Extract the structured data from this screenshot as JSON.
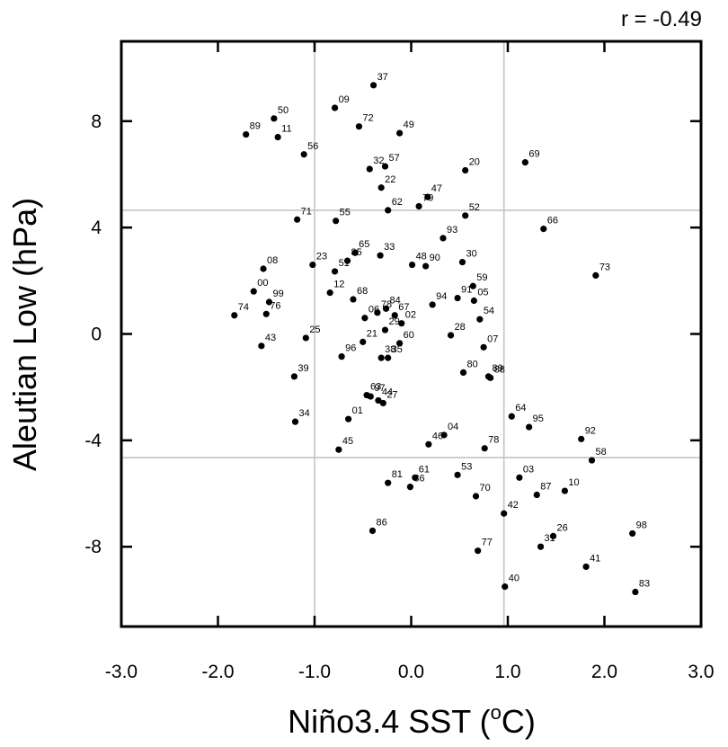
{
  "chart_data": {
    "type": "scatter",
    "xlabel_prefix": "Niño3.4 SST (",
    "xlabel_sup": "o",
    "xlabel_suffix": "C)",
    "ylabel": "Aleutian Low (hPa)",
    "annotation": "r = -0.49",
    "xlim": [
      -3.0,
      3.0
    ],
    "ylim": [
      -11.0,
      11.0
    ],
    "x_ticks": [
      -3.0,
      -2.0,
      -1.0,
      0.0,
      1.0,
      2.0,
      3.0
    ],
    "x_tick_labels": [
      "-3.0",
      "-2.0",
      "-1.0",
      "0.0",
      "1.0",
      "2.0",
      "3.0"
    ],
    "y_ticks": [
      -8,
      -4,
      0,
      4,
      8
    ],
    "y_tick_labels": [
      "-8",
      "-4",
      "0",
      "4",
      "8"
    ],
    "vlines": [
      -1.0,
      0.96
    ],
    "hlines": [
      4.65,
      -4.65
    ],
    "points": [
      {
        "label": "37",
        "x": -0.39,
        "y": 9.35
      },
      {
        "label": "09",
        "x": -0.79,
        "y": 8.5
      },
      {
        "label": "50",
        "x": -1.42,
        "y": 8.1
      },
      {
        "label": "72",
        "x": -0.54,
        "y": 7.8
      },
      {
        "label": "89",
        "x": -1.71,
        "y": 7.5
      },
      {
        "label": "11",
        "x": -1.38,
        "y": 7.4
      },
      {
        "label": "49",
        "x": -0.12,
        "y": 7.55
      },
      {
        "label": "56",
        "x": -1.11,
        "y": 6.75
      },
      {
        "label": "69",
        "x": 1.18,
        "y": 6.45
      },
      {
        "label": "20",
        "x": 0.56,
        "y": 6.15
      },
      {
        "label": "32",
        "x": -0.43,
        "y": 6.2
      },
      {
        "label": "57",
        "x": -0.27,
        "y": 6.3
      },
      {
        "label": "22",
        "x": -0.31,
        "y": 5.5
      },
      {
        "label": "79",
        "x": 0.08,
        "y": 4.8
      },
      {
        "label": "47",
        "x": 0.17,
        "y": 5.15
      },
      {
        "label": "62",
        "x": -0.24,
        "y": 4.65
      },
      {
        "label": "52",
        "x": 0.56,
        "y": 4.45
      },
      {
        "label": "71",
        "x": -1.18,
        "y": 4.3
      },
      {
        "label": "55",
        "x": -0.78,
        "y": 4.25
      },
      {
        "label": "66",
        "x": 1.37,
        "y": 3.95
      },
      {
        "label": "93",
        "x": 0.33,
        "y": 3.6
      },
      {
        "label": "65",
        "x": -0.58,
        "y": 3.05
      },
      {
        "label": "33",
        "x": -0.32,
        "y": 2.95
      },
      {
        "label": "85",
        "x": -0.66,
        "y": 2.75
      },
      {
        "label": "23",
        "x": -1.02,
        "y": 2.6
      },
      {
        "label": "51",
        "x": -0.79,
        "y": 2.35
      },
      {
        "label": "48",
        "x": 0.01,
        "y": 2.6
      },
      {
        "label": "90",
        "x": 0.15,
        "y": 2.55
      },
      {
        "label": "30",
        "x": 0.53,
        "y": 2.7
      },
      {
        "label": "08",
        "x": -1.53,
        "y": 2.45
      },
      {
        "label": "73",
        "x": 1.91,
        "y": 2.2
      },
      {
        "label": "59",
        "x": 0.64,
        "y": 1.8
      },
      {
        "label": "12",
        "x": -0.84,
        "y": 1.55
      },
      {
        "label": "00",
        "x": -1.63,
        "y": 1.6
      },
      {
        "label": "91",
        "x": 0.48,
        "y": 1.35
      },
      {
        "label": "05",
        "x": 0.65,
        "y": 1.25
      },
      {
        "label": "68",
        "x": -0.6,
        "y": 1.3
      },
      {
        "label": "99",
        "x": -1.47,
        "y": 1.2
      },
      {
        "label": "94",
        "x": 0.22,
        "y": 1.1
      },
      {
        "label": "84",
        "x": -0.26,
        "y": 0.95
      },
      {
        "label": "76",
        "x": -1.5,
        "y": 0.75
      },
      {
        "label": "67",
        "x": -0.17,
        "y": 0.7
      },
      {
        "label": "74",
        "x": -1.83,
        "y": 0.7
      },
      {
        "label": "78",
        "x": -0.35,
        "y": 0.8
      },
      {
        "label": "54",
        "x": 0.71,
        "y": 0.55
      },
      {
        "label": "02",
        "x": -0.1,
        "y": 0.4
      },
      {
        "label": "06",
        "x": -0.48,
        "y": 0.6
      },
      {
        "label": "29",
        "x": -0.27,
        "y": 0.15
      },
      {
        "label": "28",
        "x": 0.41,
        "y": -0.05
      },
      {
        "label": "25",
        "x": -1.09,
        "y": -0.15
      },
      {
        "label": "21",
        "x": -0.5,
        "y": -0.3
      },
      {
        "label": "60",
        "x": -0.12,
        "y": -0.35
      },
      {
        "label": "07",
        "x": 0.75,
        "y": -0.5
      },
      {
        "label": "43",
        "x": -1.55,
        "y": -0.45
      },
      {
        "label": "96",
        "x": -0.72,
        "y": -0.85
      },
      {
        "label": "38",
        "x": -0.31,
        "y": -0.9
      },
      {
        "label": "35",
        "x": -0.24,
        "y": -0.9
      },
      {
        "label": "80",
        "x": 0.54,
        "y": -1.45
      },
      {
        "label": "89",
        "x": 0.8,
        "y": -1.6
      },
      {
        "label": "88",
        "x": 0.82,
        "y": -1.65
      },
      {
        "label": "39",
        "x": -1.21,
        "y": -1.6
      },
      {
        "label": "63",
        "x": -0.46,
        "y": -2.3
      },
      {
        "label": "97",
        "x": -0.42,
        "y": -2.35
      },
      {
        "label": "44",
        "x": -0.34,
        "y": -2.5
      },
      {
        "label": "27",
        "x": -0.29,
        "y": -2.6
      },
      {
        "label": "64",
        "x": 1.04,
        "y": -3.1
      },
      {
        "label": "01",
        "x": -0.65,
        "y": -3.2
      },
      {
        "label": "34",
        "x": -1.2,
        "y": -3.3
      },
      {
        "label": "95",
        "x": 1.22,
        "y": -3.5
      },
      {
        "label": "04",
        "x": 0.34,
        "y": -3.8
      },
      {
        "label": "46",
        "x": 0.18,
        "y": -4.15
      },
      {
        "label": "92",
        "x": 1.76,
        "y": -3.95
      },
      {
        "label": "78",
        "x": 0.76,
        "y": -4.3
      },
      {
        "label": "45",
        "x": -0.75,
        "y": -4.35
      },
      {
        "label": "58",
        "x": 1.87,
        "y": -4.75
      },
      {
        "label": "53",
        "x": 0.48,
        "y": -5.3
      },
      {
        "label": "03",
        "x": 1.12,
        "y": -5.4
      },
      {
        "label": "61",
        "x": 0.04,
        "y": -5.4
      },
      {
        "label": "81",
        "x": -0.24,
        "y": -5.6
      },
      {
        "label": "36",
        "x": -0.01,
        "y": -5.75
      },
      {
        "label": "10",
        "x": 1.59,
        "y": -5.9
      },
      {
        "label": "87",
        "x": 1.3,
        "y": -6.05
      },
      {
        "label": "70",
        "x": 0.67,
        "y": -6.1
      },
      {
        "label": "42",
        "x": 0.96,
        "y": -6.75
      },
      {
        "label": "86",
        "x": -0.4,
        "y": -7.4
      },
      {
        "label": "26",
        "x": 1.47,
        "y": -7.6
      },
      {
        "label": "98",
        "x": 2.29,
        "y": -7.5
      },
      {
        "label": "31",
        "x": 1.34,
        "y": -8.0
      },
      {
        "label": "77",
        "x": 0.69,
        "y": -8.15
      },
      {
        "label": "41",
        "x": 1.81,
        "y": -8.75
      },
      {
        "label": "40",
        "x": 0.97,
        "y": -9.5
      },
      {
        "label": "83",
        "x": 2.32,
        "y": -9.7
      }
    ]
  }
}
